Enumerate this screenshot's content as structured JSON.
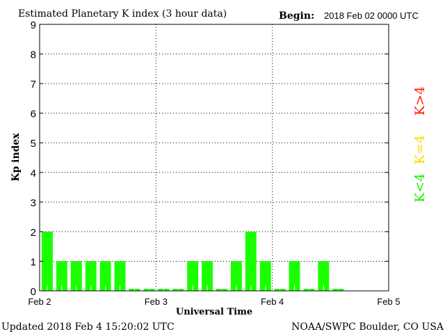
{
  "chart_data": {
    "type": "bar",
    "title": "Estimated Planetary K index (3 hour data)",
    "begin_label": "Begin:",
    "begin_value": "2018 Feb 02 0000 UTC",
    "xlabel": "Universal Time",
    "ylabel": "Kp index",
    "ylim": [
      0,
      9
    ],
    "yticks": [
      "0",
      "1",
      "2",
      "3",
      "4",
      "5",
      "6",
      "7",
      "8",
      "9"
    ],
    "xticks": [
      "Feb 2",
      "Feb 3",
      "Feb 4",
      "Feb 5"
    ],
    "interval_hours": 3,
    "total_slots": 24,
    "values": [
      2,
      1,
      1,
      1,
      1,
      1,
      0,
      0,
      0,
      0,
      1,
      1,
      0,
      1,
      2,
      1,
      0,
      1,
      0,
      1,
      0
    ],
    "bar_color": "#1aff00",
    "grid": "dotted",
    "legend": [
      {
        "label": "K<4",
        "color": "#22ee00"
      },
      {
        "label": "K=4",
        "color": "#ffd800"
      },
      {
        "label": "K>4",
        "color": "#ff2200"
      }
    ]
  },
  "footer": {
    "updated": "Updated 2018 Feb  4 15:20:02 UTC",
    "source": "NOAA/SWPC Boulder, CO USA"
  }
}
